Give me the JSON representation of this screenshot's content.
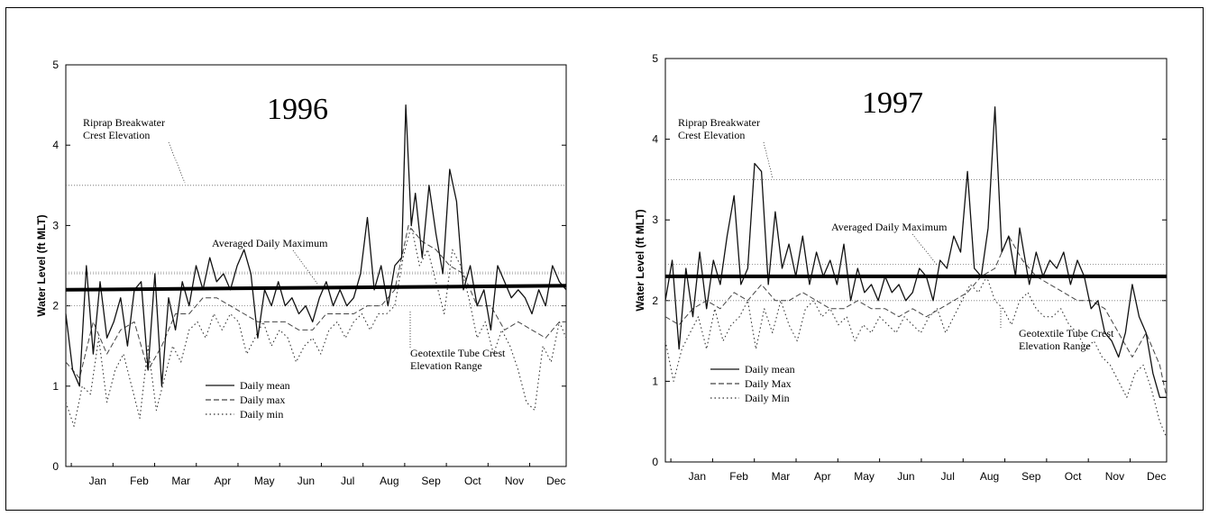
{
  "chart_data": [
    {
      "type": "line",
      "title": "1996",
      "ylabel": "Water Level (ft MLT)",
      "ylim": [
        0,
        5
      ],
      "yticks": [
        "0",
        "1",
        "2",
        "3",
        "4",
        "5"
      ],
      "xlim": [
        0,
        365
      ],
      "months": [
        "Jan",
        "Feb",
        "Mar",
        "Apr",
        "May",
        "Jun",
        "Jul",
        "Aug",
        "Sep",
        "Oct",
        "Nov",
        "Dec"
      ],
      "grid": false,
      "legend": [
        "Daily mean",
        "Daily max",
        "Daily min"
      ],
      "legend_position": "lower-left",
      "reference_lines": [
        {
          "label": "Riprap Breakwater Crest Elevation",
          "y": 3.5
        },
        {
          "label": "Averaged Daily Maximum",
          "y": [
            2.2,
            2.25
          ]
        },
        {
          "label": "Geotextile Tube Crest Elevation Range",
          "y": [
            2.0,
            2.4
          ]
        }
      ],
      "annotations": {
        "riprap": [
          "Riprap Breakwater",
          "Crest Elevation"
        ],
        "avgmax": "Averaged Daily Maximum",
        "geotube": [
          "Geotextile Tube Crest",
          "Elevation Range"
        ]
      },
      "series": [
        {
          "name": "Daily max",
          "x": [
            0,
            5,
            10,
            15,
            20,
            25,
            30,
            35,
            40,
            45,
            50,
            55,
            60,
            65,
            70,
            75,
            80,
            85,
            90,
            95,
            100,
            105,
            110,
            115,
            120,
            125,
            130,
            135,
            140,
            145,
            150,
            155,
            160,
            165,
            170,
            175,
            180,
            185,
            190,
            195,
            200,
            205,
            210,
            215,
            220,
            225,
            230,
            235,
            240,
            245,
            248,
            252,
            255,
            260,
            265,
            270,
            275,
            280,
            285,
            290,
            295,
            300,
            305,
            310,
            315,
            320,
            325,
            330,
            335,
            340,
            345,
            350,
            355,
            360,
            365
          ],
          "y": [
            1.9,
            1.2,
            1.0,
            2.5,
            1.4,
            2.3,
            1.6,
            1.8,
            2.1,
            1.5,
            2.2,
            2.3,
            1.2,
            2.4,
            1.0,
            2.1,
            1.7,
            2.3,
            2.0,
            2.5,
            2.2,
            2.6,
            2.3,
            2.4,
            2.2,
            2.5,
            2.7,
            2.4,
            1.6,
            2.2,
            2.0,
            2.3,
            2.0,
            2.1,
            1.9,
            2.0,
            1.8,
            2.1,
            2.3,
            2.0,
            2.2,
            2.0,
            2.1,
            2.4,
            3.1,
            2.2,
            2.5,
            2.0,
            2.5,
            2.6,
            4.5,
            3.0,
            3.4,
            2.6,
            3.5,
            2.9,
            2.4,
            3.7,
            3.3,
            2.2,
            2.5,
            2.0,
            2.2,
            1.7,
            2.5,
            2.3,
            2.1,
            2.2,
            2.1,
            1.9,
            2.2,
            2.0,
            2.5,
            2.3,
            2.2
          ]
        },
        {
          "name": "Daily mean",
          "x": [
            0,
            10,
            20,
            30,
            40,
            50,
            60,
            70,
            80,
            90,
            100,
            110,
            120,
            130,
            140,
            150,
            160,
            170,
            180,
            190,
            200,
            210,
            220,
            230,
            240,
            250,
            260,
            270,
            280,
            290,
            300,
            310,
            320,
            330,
            340,
            350,
            360,
            365
          ],
          "y": [
            1.3,
            1.1,
            1.8,
            1.4,
            1.7,
            1.8,
            1.2,
            1.5,
            1.9,
            1.9,
            2.1,
            2.1,
            2.0,
            1.9,
            1.8,
            1.8,
            1.8,
            1.7,
            1.7,
            1.9,
            1.9,
            1.9,
            2.0,
            2.0,
            2.2,
            3.0,
            2.8,
            2.7,
            2.5,
            2.4,
            2.0,
            2.0,
            1.7,
            1.8,
            1.7,
            1.6,
            1.8,
            1.8
          ]
        },
        {
          "name": "Daily min",
          "x": [
            0,
            6,
            12,
            18,
            24,
            30,
            36,
            42,
            48,
            54,
            60,
            66,
            72,
            78,
            84,
            90,
            96,
            102,
            108,
            114,
            120,
            126,
            132,
            138,
            144,
            150,
            156,
            162,
            168,
            174,
            180,
            186,
            192,
            198,
            204,
            210,
            216,
            222,
            228,
            234,
            240,
            246,
            252,
            258,
            264,
            270,
            276,
            282,
            288,
            294,
            300,
            306,
            312,
            318,
            324,
            330,
            336,
            342,
            348,
            354,
            360,
            365
          ],
          "y": [
            0.8,
            0.5,
            1.0,
            0.9,
            1.6,
            0.8,
            1.2,
            1.4,
            1.0,
            0.6,
            1.5,
            0.7,
            1.1,
            1.5,
            1.3,
            1.7,
            1.8,
            1.6,
            1.9,
            1.7,
            1.9,
            1.8,
            1.4,
            1.6,
            1.8,
            1.5,
            1.7,
            1.6,
            1.3,
            1.5,
            1.6,
            1.4,
            1.7,
            1.8,
            1.6,
            1.8,
            1.9,
            1.7,
            1.9,
            1.9,
            2.0,
            2.6,
            3.0,
            2.5,
            2.7,
            2.3,
            1.9,
            2.7,
            2.5,
            2.1,
            1.6,
            1.8,
            1.4,
            1.7,
            1.5,
            1.2,
            0.8,
            0.7,
            1.5,
            1.3,
            1.8,
            1.6
          ]
        }
      ]
    },
    {
      "type": "line",
      "title": "1997",
      "ylabel": "Water Level (ft MLT)",
      "ylim": [
        0,
        5
      ],
      "yticks": [
        "0",
        "1",
        "2",
        "3",
        "4",
        "5"
      ],
      "xlim": [
        0,
        365
      ],
      "months": [
        "Jan",
        "Feb",
        "Mar",
        "Apr",
        "May",
        "Jun",
        "Jul",
        "Aug",
        "Sep",
        "Oct",
        "Nov",
        "Dec"
      ],
      "grid": false,
      "legend": [
        "Daily mean",
        "Daily Max",
        "Daily Min"
      ],
      "legend_position": "lower-left",
      "reference_lines": [
        {
          "label": "Riprap Breakwater Crest Elevation",
          "y": 3.5
        },
        {
          "label": "Averaged Daily Maximum",
          "y": 2.3
        },
        {
          "label": "Geotextile Tube Crest Elevation Range",
          "y": [
            2.0,
            2.45
          ]
        }
      ],
      "annotations": {
        "riprap": [
          "Riprap Breakwater",
          "Crest Elevation"
        ],
        "avgmax": "Averaged Daily Maximum",
        "geotube": [
          "Geotextile Tube Crest",
          "Elevation Range"
        ]
      },
      "series": [
        {
          "name": "Daily Max",
          "x": [
            0,
            5,
            10,
            15,
            20,
            25,
            30,
            35,
            40,
            45,
            50,
            55,
            60,
            65,
            70,
            75,
            80,
            85,
            90,
            95,
            100,
            105,
            110,
            115,
            120,
            125,
            130,
            135,
            140,
            145,
            150,
            155,
            160,
            165,
            170,
            175,
            180,
            185,
            190,
            195,
            200,
            205,
            210,
            215,
            220,
            225,
            230,
            235,
            240,
            245,
            250,
            255,
            258,
            262,
            265,
            270,
            275,
            280,
            285,
            290,
            295,
            300,
            305,
            310,
            315,
            320,
            325,
            330,
            335,
            340,
            345,
            350,
            355,
            360,
            365
          ],
          "y": [
            2.0,
            2.5,
            1.4,
            2.4,
            1.8,
            2.6,
            1.9,
            2.5,
            2.2,
            2.8,
            3.3,
            2.2,
            2.4,
            3.7,
            3.6,
            2.2,
            3.1,
            2.4,
            2.7,
            2.3,
            2.8,
            2.2,
            2.6,
            2.3,
            2.5,
            2.2,
            2.7,
            2.0,
            2.4,
            2.1,
            2.2,
            2.0,
            2.3,
            2.1,
            2.2,
            2.0,
            2.1,
            2.4,
            2.3,
            2.0,
            2.5,
            2.4,
            2.8,
            2.6,
            3.6,
            2.4,
            2.3,
            2.9,
            4.4,
            2.6,
            2.8,
            2.3,
            2.9,
            2.5,
            2.2,
            2.6,
            2.3,
            2.5,
            2.4,
            2.6,
            2.2,
            2.5,
            2.3,
            1.9,
            2.0,
            1.6,
            1.5,
            1.3,
            1.6,
            2.2,
            1.8,
            1.6,
            1.1,
            0.8,
            0.8
          ]
        },
        {
          "name": "Daily mean",
          "x": [
            0,
            10,
            20,
            30,
            40,
            50,
            60,
            70,
            80,
            90,
            100,
            110,
            120,
            130,
            140,
            150,
            160,
            170,
            180,
            190,
            200,
            210,
            220,
            230,
            240,
            250,
            260,
            270,
            280,
            290,
            300,
            310,
            320,
            330,
            340,
            350,
            360,
            365
          ],
          "y": [
            1.8,
            1.7,
            1.9,
            2.0,
            1.9,
            2.1,
            2.0,
            2.2,
            2.0,
            2.0,
            2.1,
            2.0,
            1.9,
            1.9,
            2.0,
            1.9,
            1.9,
            1.8,
            1.9,
            1.8,
            1.9,
            2.0,
            2.1,
            2.3,
            2.4,
            2.8,
            2.5,
            2.3,
            2.2,
            2.1,
            2.0,
            2.0,
            1.9,
            1.6,
            1.3,
            1.6,
            1.2,
            0.8
          ]
        },
        {
          "name": "Daily Min",
          "x": [
            0,
            6,
            12,
            18,
            24,
            30,
            36,
            42,
            48,
            54,
            60,
            66,
            72,
            78,
            84,
            90,
            96,
            102,
            108,
            114,
            120,
            126,
            132,
            138,
            144,
            150,
            156,
            162,
            168,
            174,
            180,
            186,
            192,
            198,
            204,
            210,
            216,
            222,
            228,
            234,
            240,
            246,
            252,
            258,
            264,
            270,
            276,
            282,
            288,
            294,
            300,
            306,
            312,
            318,
            324,
            330,
            336,
            342,
            348,
            354,
            360,
            365
          ],
          "y": [
            1.5,
            1.0,
            1.4,
            1.6,
            1.8,
            1.4,
            1.9,
            1.5,
            1.7,
            1.8,
            2.0,
            1.4,
            1.9,
            1.6,
            2.0,
            1.7,
            1.5,
            1.9,
            2.0,
            1.8,
            1.9,
            1.7,
            1.8,
            1.5,
            1.7,
            1.6,
            1.8,
            1.7,
            1.6,
            1.8,
            1.7,
            1.6,
            1.8,
            1.9,
            1.6,
            1.8,
            2.0,
            2.2,
            2.1,
            2.3,
            2.0,
            1.9,
            1.7,
            2.0,
            2.1,
            1.9,
            1.8,
            1.8,
            1.9,
            1.7,
            1.6,
            1.4,
            1.5,
            1.3,
            1.2,
            1.0,
            0.8,
            1.1,
            1.2,
            0.9,
            0.5,
            0.3
          ]
        }
      ]
    }
  ]
}
